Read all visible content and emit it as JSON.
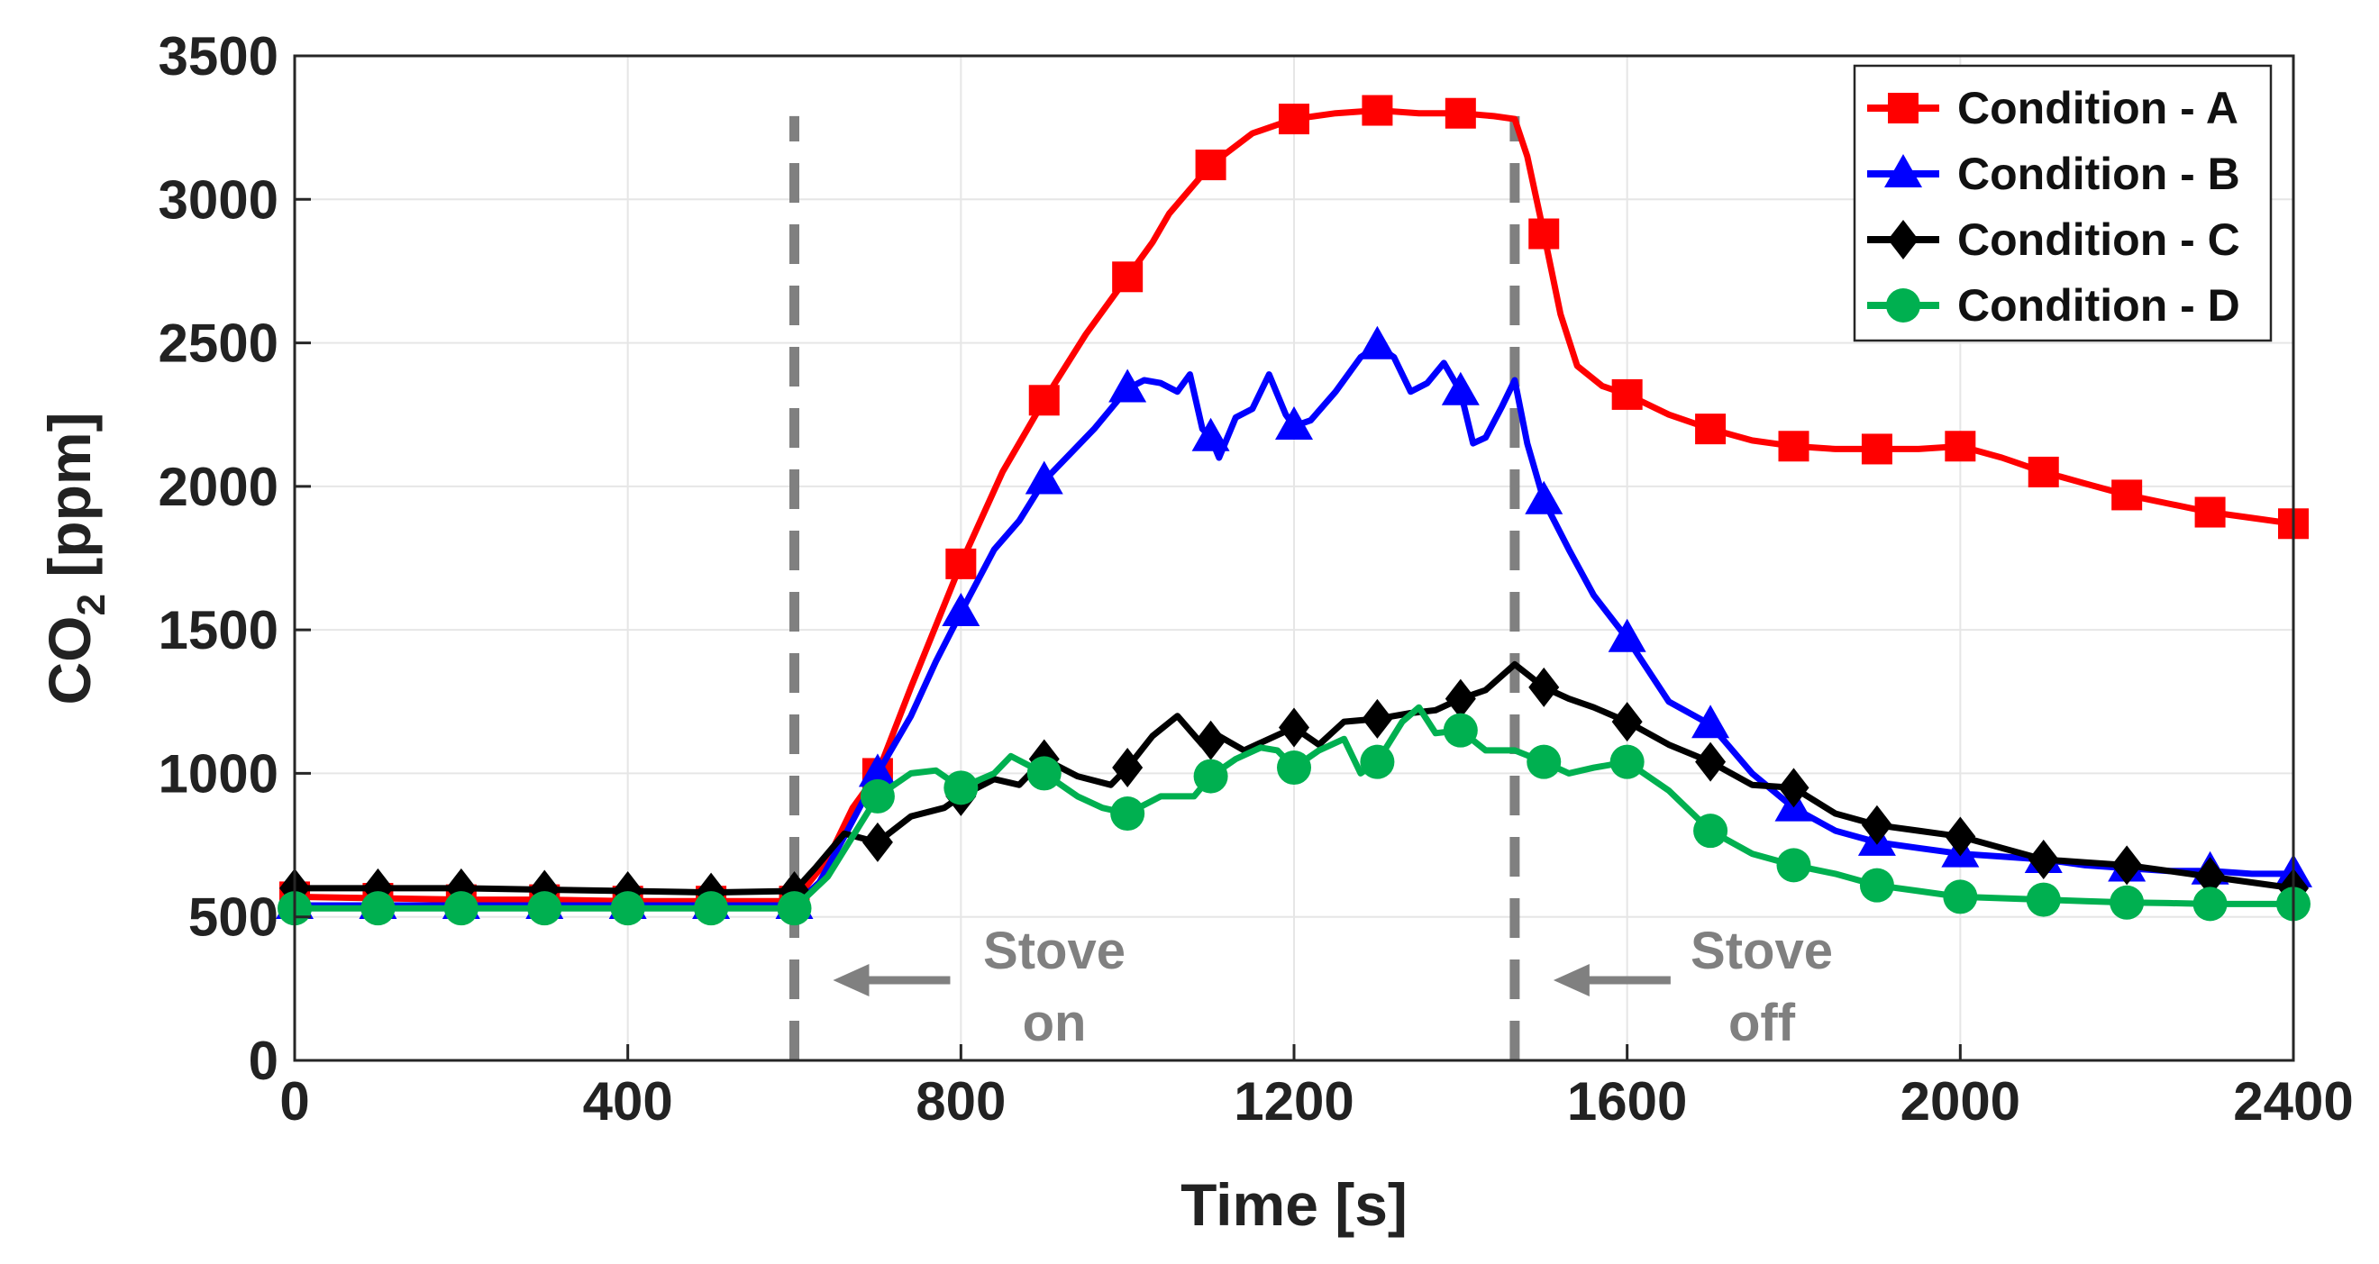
{
  "chart_data": {
    "type": "line",
    "title": "",
    "xlabel": "Time [s]",
    "ylabel_main": "CO",
    "ylabel_sub": "2",
    "ylabel_unit": " [ppm]",
    "xlim": [
      0,
      2400
    ],
    "ylim": [
      0,
      3500
    ],
    "xticks": [
      0,
      400,
      800,
      1200,
      1600,
      2000,
      2400
    ],
    "yticks": [
      0,
      500,
      1000,
      1500,
      2000,
      2500,
      3000,
      3500
    ],
    "grid": true,
    "legend_position": "top-right",
    "series": [
      {
        "name": "Condition - A",
        "color": "#ff0000",
        "marker": "square",
        "marker_x": [
          0,
          100,
          200,
          300,
          400,
          500,
          600,
          700,
          800,
          900,
          1000,
          1100,
          1200,
          1300,
          1400,
          1500,
          1600,
          1700,
          1800,
          1900,
          2000,
          2100,
          2200,
          2300,
          2400
        ],
        "points": [
          [
            0,
            570
          ],
          [
            100,
            565
          ],
          [
            200,
            560
          ],
          [
            300,
            560
          ],
          [
            400,
            555
          ],
          [
            500,
            555
          ],
          [
            600,
            555
          ],
          [
            640,
            700
          ],
          [
            670,
            880
          ],
          [
            700,
            1000
          ],
          [
            740,
            1300
          ],
          [
            800,
            1730
          ],
          [
            850,
            2050
          ],
          [
            900,
            2300
          ],
          [
            950,
            2530
          ],
          [
            1000,
            2730
          ],
          [
            1030,
            2850
          ],
          [
            1050,
            2950
          ],
          [
            1100,
            3120
          ],
          [
            1150,
            3230
          ],
          [
            1200,
            3280
          ],
          [
            1250,
            3300
          ],
          [
            1300,
            3310
          ],
          [
            1350,
            3300
          ],
          [
            1400,
            3300
          ],
          [
            1440,
            3290
          ],
          [
            1465,
            3280
          ],
          [
            1480,
            3150
          ],
          [
            1500,
            2880
          ],
          [
            1520,
            2600
          ],
          [
            1540,
            2420
          ],
          [
            1570,
            2350
          ],
          [
            1600,
            2320
          ],
          [
            1650,
            2250
          ],
          [
            1700,
            2200
          ],
          [
            1750,
            2160
          ],
          [
            1800,
            2140
          ],
          [
            1850,
            2130
          ],
          [
            1900,
            2130
          ],
          [
            1950,
            2130
          ],
          [
            2000,
            2140
          ],
          [
            2050,
            2100
          ],
          [
            2100,
            2050
          ],
          [
            2150,
            2010
          ],
          [
            2200,
            1970
          ],
          [
            2250,
            1940
          ],
          [
            2300,
            1910
          ],
          [
            2350,
            1890
          ],
          [
            2400,
            1870
          ]
        ]
      },
      {
        "name": "Condition - B",
        "color": "#0000ff",
        "marker": "triangle",
        "marker_x": [
          0,
          100,
          200,
          300,
          400,
          500,
          600,
          700,
          800,
          900,
          1000,
          1100,
          1200,
          1300,
          1400,
          1500,
          1600,
          1700,
          1800,
          1900,
          2000,
          2100,
          2200,
          2300,
          2400
        ],
        "points": [
          [
            0,
            540
          ],
          [
            100,
            540
          ],
          [
            200,
            540
          ],
          [
            300,
            540
          ],
          [
            400,
            540
          ],
          [
            500,
            540
          ],
          [
            600,
            540
          ],
          [
            630,
            620
          ],
          [
            660,
            780
          ],
          [
            700,
            1000
          ],
          [
            740,
            1200
          ],
          [
            770,
            1390
          ],
          [
            800,
            1560
          ],
          [
            840,
            1780
          ],
          [
            870,
            1880
          ],
          [
            900,
            2020
          ],
          [
            930,
            2110
          ],
          [
            960,
            2200
          ],
          [
            980,
            2270
          ],
          [
            1000,
            2340
          ],
          [
            1020,
            2370
          ],
          [
            1040,
            2360
          ],
          [
            1060,
            2330
          ],
          [
            1075,
            2390
          ],
          [
            1090,
            2200
          ],
          [
            1100,
            2170
          ],
          [
            1110,
            2100
          ],
          [
            1130,
            2240
          ],
          [
            1150,
            2270
          ],
          [
            1170,
            2390
          ],
          [
            1190,
            2250
          ],
          [
            1200,
            2210
          ],
          [
            1220,
            2230
          ],
          [
            1250,
            2330
          ],
          [
            1280,
            2450
          ],
          [
            1300,
            2490
          ],
          [
            1320,
            2450
          ],
          [
            1340,
            2330
          ],
          [
            1360,
            2360
          ],
          [
            1380,
            2430
          ],
          [
            1400,
            2330
          ],
          [
            1415,
            2150
          ],
          [
            1430,
            2170
          ],
          [
            1450,
            2280
          ],
          [
            1465,
            2370
          ],
          [
            1480,
            2150
          ],
          [
            1500,
            1950
          ],
          [
            1530,
            1780
          ],
          [
            1560,
            1620
          ],
          [
            1600,
            1470
          ],
          [
            1650,
            1250
          ],
          [
            1700,
            1170
          ],
          [
            1750,
            1000
          ],
          [
            1800,
            880
          ],
          [
            1850,
            800
          ],
          [
            1900,
            760
          ],
          [
            1950,
            740
          ],
          [
            2000,
            720
          ],
          [
            2050,
            710
          ],
          [
            2100,
            700
          ],
          [
            2150,
            680
          ],
          [
            2200,
            670
          ],
          [
            2250,
            660
          ],
          [
            2300,
            660
          ],
          [
            2350,
            650
          ],
          [
            2400,
            650
          ]
        ]
      },
      {
        "name": "Condition - C",
        "color": "#000000",
        "marker": "diamond",
        "marker_x": [
          0,
          100,
          200,
          300,
          400,
          500,
          600,
          700,
          800,
          900,
          1000,
          1100,
          1200,
          1300,
          1400,
          1500,
          1600,
          1700,
          1800,
          1900,
          2000,
          2100,
          2200,
          2300,
          2400
        ],
        "points": [
          [
            0,
            600
          ],
          [
            100,
            600
          ],
          [
            200,
            600
          ],
          [
            300,
            595
          ],
          [
            400,
            590
          ],
          [
            500,
            585
          ],
          [
            600,
            590
          ],
          [
            625,
            670
          ],
          [
            660,
            790
          ],
          [
            700,
            760
          ],
          [
            740,
            850
          ],
          [
            780,
            880
          ],
          [
            800,
            920
          ],
          [
            840,
            980
          ],
          [
            870,
            960
          ],
          [
            900,
            1050
          ],
          [
            940,
            990
          ],
          [
            980,
            960
          ],
          [
            1000,
            1020
          ],
          [
            1030,
            1130
          ],
          [
            1060,
            1200
          ],
          [
            1090,
            1100
          ],
          [
            1110,
            1130
          ],
          [
            1140,
            1080
          ],
          [
            1170,
            1120
          ],
          [
            1200,
            1160
          ],
          [
            1230,
            1100
          ],
          [
            1260,
            1180
          ],
          [
            1300,
            1190
          ],
          [
            1340,
            1210
          ],
          [
            1370,
            1220
          ],
          [
            1400,
            1260
          ],
          [
            1430,
            1290
          ],
          [
            1465,
            1380
          ],
          [
            1500,
            1300
          ],
          [
            1530,
            1260
          ],
          [
            1560,
            1230
          ],
          [
            1600,
            1180
          ],
          [
            1650,
            1100
          ],
          [
            1700,
            1040
          ],
          [
            1750,
            960
          ],
          [
            1800,
            950
          ],
          [
            1850,
            860
          ],
          [
            1900,
            820
          ],
          [
            1950,
            800
          ],
          [
            2000,
            780
          ],
          [
            2050,
            740
          ],
          [
            2100,
            700
          ],
          [
            2150,
            690
          ],
          [
            2200,
            680
          ],
          [
            2250,
            660
          ],
          [
            2300,
            640
          ],
          [
            2350,
            620
          ],
          [
            2400,
            600
          ]
        ]
      },
      {
        "name": "Condition - D",
        "color": "#00b050",
        "marker": "circle",
        "marker_x": [
          0,
          100,
          200,
          300,
          400,
          500,
          600,
          700,
          800,
          900,
          1000,
          1100,
          1200,
          1300,
          1400,
          1500,
          1600,
          1700,
          1800,
          1900,
          2000,
          2100,
          2200,
          2300,
          2400
        ],
        "points": [
          [
            0,
            530
          ],
          [
            100,
            530
          ],
          [
            200,
            530
          ],
          [
            300,
            530
          ],
          [
            400,
            530
          ],
          [
            500,
            530
          ],
          [
            600,
            530
          ],
          [
            640,
            640
          ],
          [
            670,
            780
          ],
          [
            700,
            920
          ],
          [
            740,
            1000
          ],
          [
            770,
            1010
          ],
          [
            800,
            950
          ],
          [
            840,
            1000
          ],
          [
            860,
            1060
          ],
          [
            900,
            1000
          ],
          [
            940,
            920
          ],
          [
            970,
            880
          ],
          [
            1000,
            860
          ],
          [
            1040,
            920
          ],
          [
            1080,
            920
          ],
          [
            1100,
            990
          ],
          [
            1130,
            1050
          ],
          [
            1160,
            1090
          ],
          [
            1180,
            1080
          ],
          [
            1200,
            1020
          ],
          [
            1230,
            1080
          ],
          [
            1260,
            1120
          ],
          [
            1280,
            1000
          ],
          [
            1300,
            1040
          ],
          [
            1330,
            1180
          ],
          [
            1350,
            1230
          ],
          [
            1370,
            1140
          ],
          [
            1400,
            1150
          ],
          [
            1430,
            1080
          ],
          [
            1465,
            1080
          ],
          [
            1500,
            1040
          ],
          [
            1530,
            1000
          ],
          [
            1560,
            1020
          ],
          [
            1600,
            1040
          ],
          [
            1650,
            940
          ],
          [
            1700,
            800
          ],
          [
            1750,
            720
          ],
          [
            1800,
            680
          ],
          [
            1850,
            650
          ],
          [
            1900,
            610
          ],
          [
            1950,
            590
          ],
          [
            2000,
            570
          ],
          [
            2050,
            565
          ],
          [
            2100,
            560
          ],
          [
            2150,
            555
          ],
          [
            2200,
            550
          ],
          [
            2250,
            548
          ],
          [
            2300,
            545
          ],
          [
            2350,
            545
          ],
          [
            2400,
            545
          ]
        ]
      }
    ],
    "vertical_markers": [
      {
        "x": 600,
        "color": "#808080",
        "style": "dashed"
      },
      {
        "x": 1465,
        "color": "#808080",
        "style": "dashed"
      }
    ],
    "annotations": [
      {
        "id": "stove-on",
        "lines": [
          "Stove",
          "on"
        ],
        "arrow_to_x": 640,
        "x": 920,
        "y": 350
      },
      {
        "id": "stove-off",
        "lines": [
          "Stove",
          "off"
        ],
        "arrow_to_x": 1505,
        "x": 1790,
        "y": 350
      }
    ]
  }
}
